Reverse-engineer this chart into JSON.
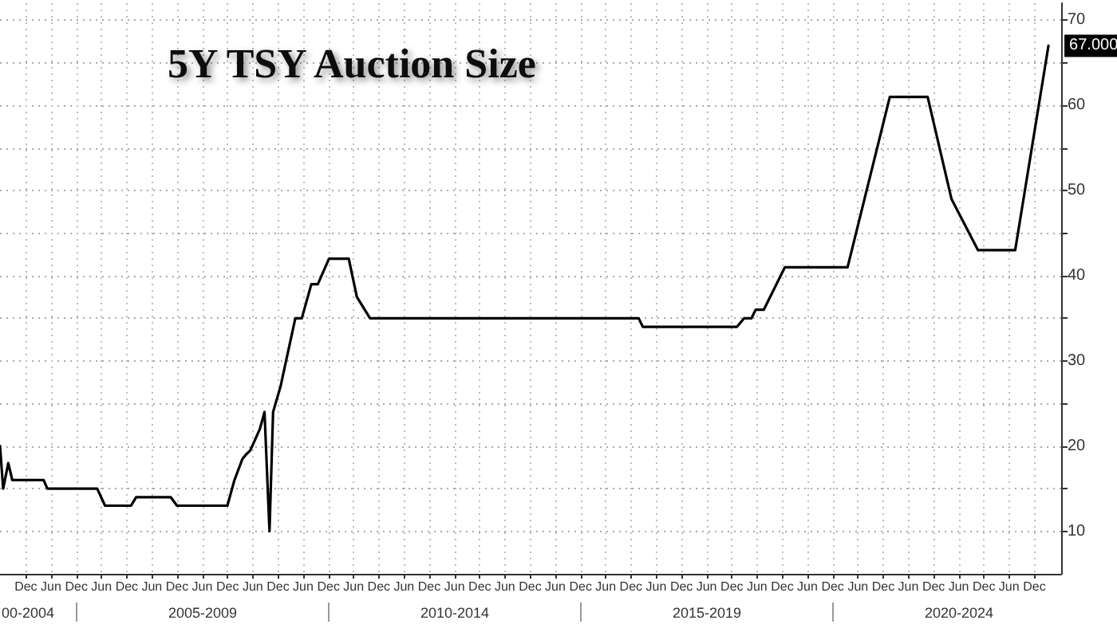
{
  "chart_data": {
    "type": "line",
    "title": "5Y TSY Auction Size",
    "x": [
      "2003-05-28",
      "2003-06-20",
      "2003-07-27",
      "2003-08-25",
      "2004-04-08",
      "2004-05-05",
      "2005-05-01",
      "2005-06-27",
      "2006-01-01",
      "2006-02-07",
      "2006-10-15",
      "2006-11-30",
      "2007-11-30",
      "2008-01-20",
      "2008-03-18",
      "2008-04-13",
      "2008-05-14",
      "2008-07-22",
      "2008-08-25",
      "2008-09-30",
      "2008-10-26",
      "2008-12-19",
      "2009-04-05",
      "2009-05-22",
      "2009-07-30",
      "2009-09-15",
      "2009-12-05",
      "2010-04-27",
      "2010-06-25",
      "2010-09-28",
      "2016-01-26",
      "2016-02-25",
      "2018-01-07",
      "2018-02-27",
      "2018-04-22",
      "2018-05-22",
      "2018-07-20",
      "2018-12-20",
      "2020-03-18",
      "2021-01-18",
      "2021-10-19",
      "2022-04-10",
      "2022-10-19",
      "2023-07-15",
      "2024-03-12"
    ],
    "series": [
      {
        "color": "#000000",
        "values": [
          20,
          15,
          18,
          16,
          16,
          15,
          15,
          13,
          13,
          14,
          14,
          13,
          13,
          16,
          18.5,
          19,
          19.5,
          22,
          24,
          10,
          24,
          27,
          35,
          35,
          39,
          39,
          42,
          42,
          37.5,
          35,
          35,
          34,
          34,
          35,
          35,
          36,
          36,
          41,
          41,
          61,
          61,
          49,
          43,
          43,
          67
        ],
        "value_labels": [
          null,
          null,
          null,
          null,
          null,
          null,
          null,
          null,
          null,
          null,
          null,
          null,
          null,
          null,
          null,
          null,
          null,
          null,
          null,
          null,
          null,
          null,
          null,
          null,
          null,
          null,
          null,
          null,
          null,
          null,
          null,
          null,
          null,
          null,
          null,
          null,
          null,
          null,
          null,
          null,
          null,
          null,
          null,
          null,
          "67.000"
        ]
      }
    ],
    "xlim": [
      "2003-05-28",
      "2024-06-12"
    ],
    "xticks": [
      {
        "value": "2003-12-01",
        "label": "Dec"
      },
      {
        "value": "2004-06-01",
        "label": "Jun"
      },
      {
        "value": "2004-12-01",
        "label": "Dec"
      },
      {
        "value": "2005-06-01",
        "label": "Jun"
      },
      {
        "value": "2005-12-01",
        "label": "Dec"
      },
      {
        "value": "2006-06-01",
        "label": "Jun"
      },
      {
        "value": "2006-12-01",
        "label": "Dec"
      },
      {
        "value": "2007-06-01",
        "label": "Jun"
      },
      {
        "value": "2007-12-01",
        "label": "Dec"
      },
      {
        "value": "2008-06-01",
        "label": "Jun"
      },
      {
        "value": "2008-12-01",
        "label": "Dec"
      },
      {
        "value": "2009-06-01",
        "label": "Jun"
      },
      {
        "value": "2009-12-01",
        "label": "Dec"
      },
      {
        "value": "2010-06-01",
        "label": "Jun"
      },
      {
        "value": "2010-12-01",
        "label": "Dec"
      },
      {
        "value": "2011-06-01",
        "label": "Jun"
      },
      {
        "value": "2011-12-01",
        "label": "Dec"
      },
      {
        "value": "2012-06-01",
        "label": "Jun"
      },
      {
        "value": "2012-12-01",
        "label": "Dec"
      },
      {
        "value": "2013-06-01",
        "label": "Jun"
      },
      {
        "value": "2013-12-01",
        "label": "Dec"
      },
      {
        "value": "2014-06-01",
        "label": "Jun"
      },
      {
        "value": "2014-12-01",
        "label": "Dec"
      },
      {
        "value": "2015-06-01",
        "label": "Jun"
      },
      {
        "value": "2015-12-01",
        "label": "Dec"
      },
      {
        "value": "2016-06-01",
        "label": "Jun"
      },
      {
        "value": "2016-12-01",
        "label": "Dec"
      },
      {
        "value": "2017-06-01",
        "label": "Jun"
      },
      {
        "value": "2017-12-01",
        "label": "Dec"
      },
      {
        "value": "2018-06-01",
        "label": "Jun"
      },
      {
        "value": "2018-12-01",
        "label": "Dec"
      },
      {
        "value": "2019-06-01",
        "label": "Jun"
      },
      {
        "value": "2019-12-01",
        "label": "Dec"
      },
      {
        "value": "2020-06-01",
        "label": "Jun"
      },
      {
        "value": "2020-12-01",
        "label": "Dec"
      },
      {
        "value": "2021-06-01",
        "label": "Jun"
      },
      {
        "value": "2021-12-01",
        "label": "Dec"
      },
      {
        "value": "2022-06-01",
        "label": "Jun"
      },
      {
        "value": "2022-12-01",
        "label": "Dec"
      },
      {
        "value": "2023-06-01",
        "label": "Jun"
      },
      {
        "value": "2023-12-01",
        "label": "Dec"
      }
    ],
    "ylim": [
      5,
      72
    ],
    "yticks": [
      10,
      {
        "value": 15,
        "label": null
      },
      20,
      {
        "value": 25,
        "label": null
      },
      30,
      {
        "value": 35,
        "label": null
      },
      40,
      {
        "value": 45,
        "label": null
      },
      50,
      {
        "value": 55,
        "label": null
      },
      60,
      {
        "value": 65,
        "label": null
      },
      70
    ],
    "annotations": [
      "00-2004",
      "2005-2009",
      "2010-2014",
      "2015-2019",
      "2020-2024"
    ],
    "grid": true,
    "marker": "none",
    "line_style": "solid"
  }
}
